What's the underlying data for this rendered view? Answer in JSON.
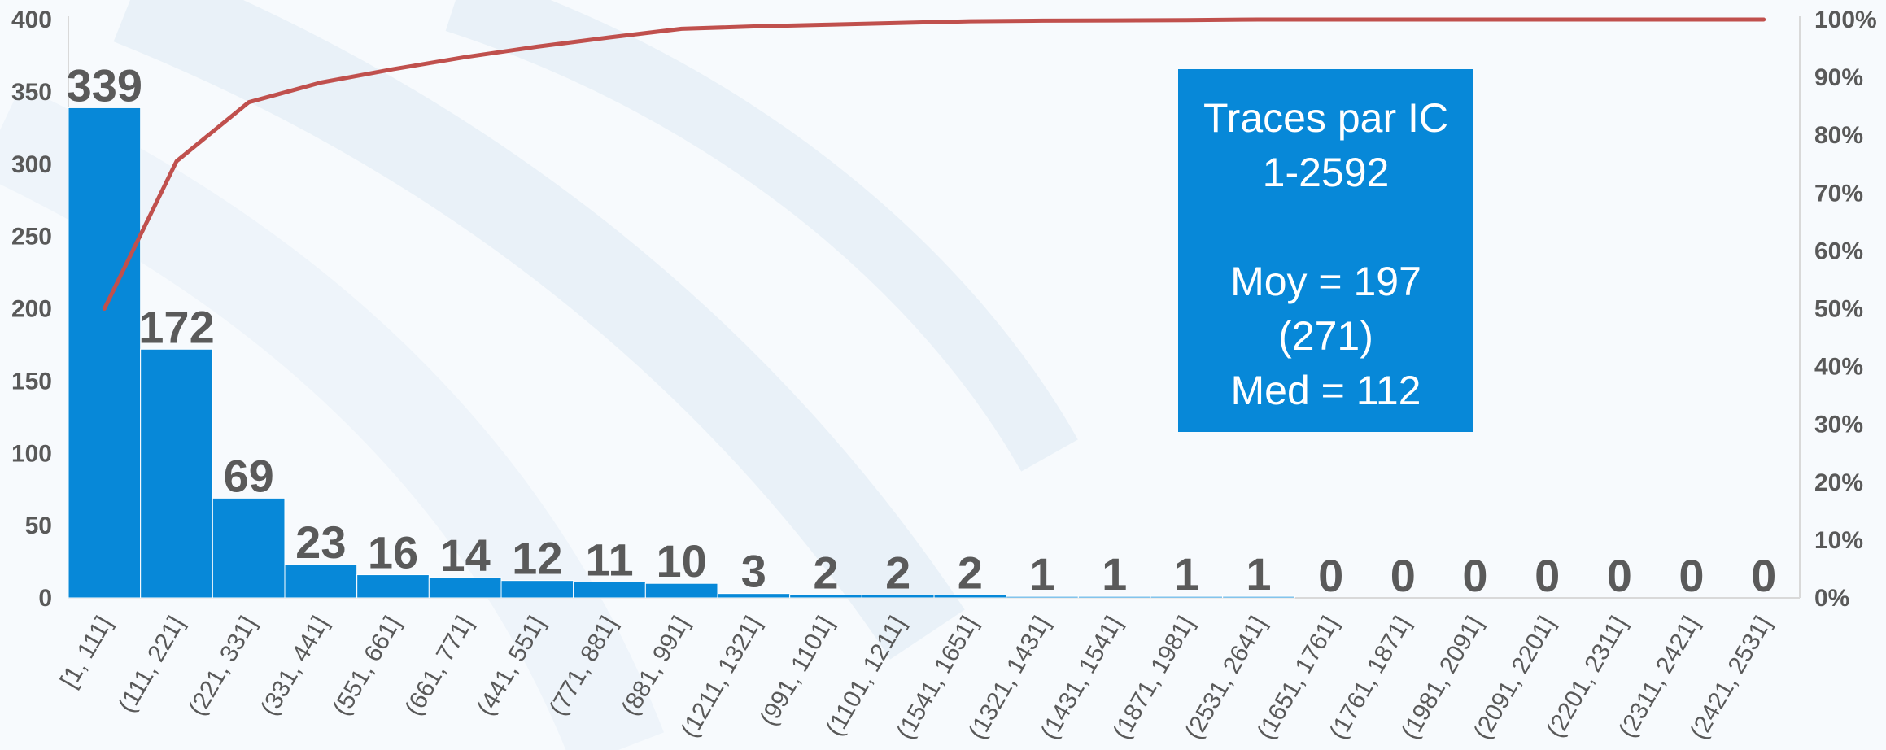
{
  "chart_data": {
    "type": "bar",
    "categories": [
      "[1, 111]",
      "(111, 221]",
      "(221, 331]",
      "(331, 441]",
      "(551, 661]",
      "(661, 771]",
      "(441, 551]",
      "(771, 881]",
      "(881, 991]",
      "(1211, 1321]",
      "(991, 1101]",
      "(1101, 1211]",
      "(1541, 1651]",
      "(1321, 1431]",
      "(1431, 1541]",
      "(1871, 1981]",
      "(2531, 2641]",
      "(1651, 1761]",
      "(1761, 1871]",
      "(1981, 2091]",
      "(2091, 2201]",
      "(2201, 2311]",
      "(2311, 2421]",
      "(2421, 2531]"
    ],
    "series": [
      {
        "type": "bar",
        "axis": "left",
        "color": "#0788d8",
        "values": [
          339,
          172,
          69,
          23,
          16,
          14,
          12,
          11,
          10,
          3,
          2,
          2,
          2,
          1,
          1,
          1,
          1,
          0,
          0,
          0,
          0,
          0,
          0,
          0
        ]
      },
      {
        "type": "line",
        "axis": "right",
        "color": "#c0504d",
        "values": [
          0.5,
          0.755,
          0.857,
          0.891,
          0.914,
          0.935,
          0.953,
          0.969,
          0.984,
          0.988,
          0.991,
          0.994,
          0.997,
          0.998,
          0.9985,
          0.999,
          1.0,
          1.0,
          1.0,
          1.0,
          1.0,
          1.0,
          1.0,
          1.0
        ]
      }
    ],
    "y_left": {
      "ylim": [
        0,
        400
      ],
      "ticks": [
        "0",
        "50",
        "100",
        "150",
        "200",
        "250",
        "300",
        "350",
        "400"
      ]
    },
    "y_right": {
      "ylim": [
        0,
        1
      ],
      "ticks": [
        "0%",
        "10%",
        "20%",
        "30%",
        "40%",
        "50%",
        "60%",
        "70%",
        "80%",
        "90%",
        "100%"
      ]
    },
    "data_labels": [
      "339",
      "172",
      "69",
      "23",
      "16",
      "14",
      "12",
      "11",
      "10",
      "3",
      "2",
      "2",
      "2",
      "1",
      "1",
      "1",
      "1",
      "0",
      "0",
      "0",
      "0",
      "0",
      "0",
      "0"
    ],
    "grid": false,
    "title": "",
    "xlabel": "",
    "ylabel": ""
  },
  "info_box": {
    "lines": [
      "Traces par IC",
      "1-2592",
      "Moy = 197",
      "(271)",
      "Med = 112"
    ]
  }
}
